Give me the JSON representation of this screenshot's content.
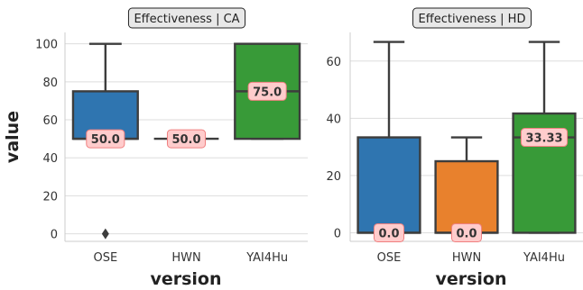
{
  "chart_data": {
    "type": "box",
    "xlabel": "version",
    "ylabel": "value",
    "categories": [
      "OSE",
      "HWN",
      "YAI4Hu"
    ],
    "colors": {
      "OSE": "#2f75b0",
      "HWN": "#e8812d",
      "YAI4Hu": "#389a38"
    },
    "panels": [
      {
        "title": "Effectiveness | CA",
        "ylim": [
          -4,
          106
        ],
        "yticks": [
          0,
          20,
          40,
          60,
          80,
          100
        ],
        "boxes": [
          {
            "category": "OSE",
            "whisker_low": 50,
            "q1": 50,
            "median": 50,
            "q3": 75,
            "whisker_high": 100,
            "outliers": [
              0
            ],
            "label": "50.0"
          },
          {
            "category": "HWN",
            "whisker_low": 50,
            "q1": 50,
            "median": 50,
            "q3": 50,
            "whisker_high": 50,
            "outliers": [],
            "label": "50.0"
          },
          {
            "category": "YAI4Hu",
            "whisker_low": 50,
            "q1": 50,
            "median": 75,
            "q3": 100,
            "whisker_high": 100,
            "outliers": [],
            "label": "75.0"
          }
        ]
      },
      {
        "title": "Effectiveness | HD",
        "ylim": [
          -3,
          70
        ],
        "yticks": [
          0,
          20,
          40,
          60
        ],
        "boxes": [
          {
            "category": "OSE",
            "whisker_low": 0,
            "q1": 0,
            "median": 0,
            "q3": 33.33,
            "whisker_high": 66.67,
            "outliers": [],
            "label": "0.0"
          },
          {
            "category": "HWN",
            "whisker_low": 0,
            "q1": 0,
            "median": 0,
            "q3": 25,
            "whisker_high": 33.33,
            "outliers": [],
            "label": "0.0"
          },
          {
            "category": "YAI4Hu",
            "whisker_low": 0,
            "q1": 0,
            "median": 33.33,
            "q3": 41.67,
            "whisker_high": 66.67,
            "outliers": [],
            "label": "33.33"
          }
        ]
      }
    ]
  }
}
